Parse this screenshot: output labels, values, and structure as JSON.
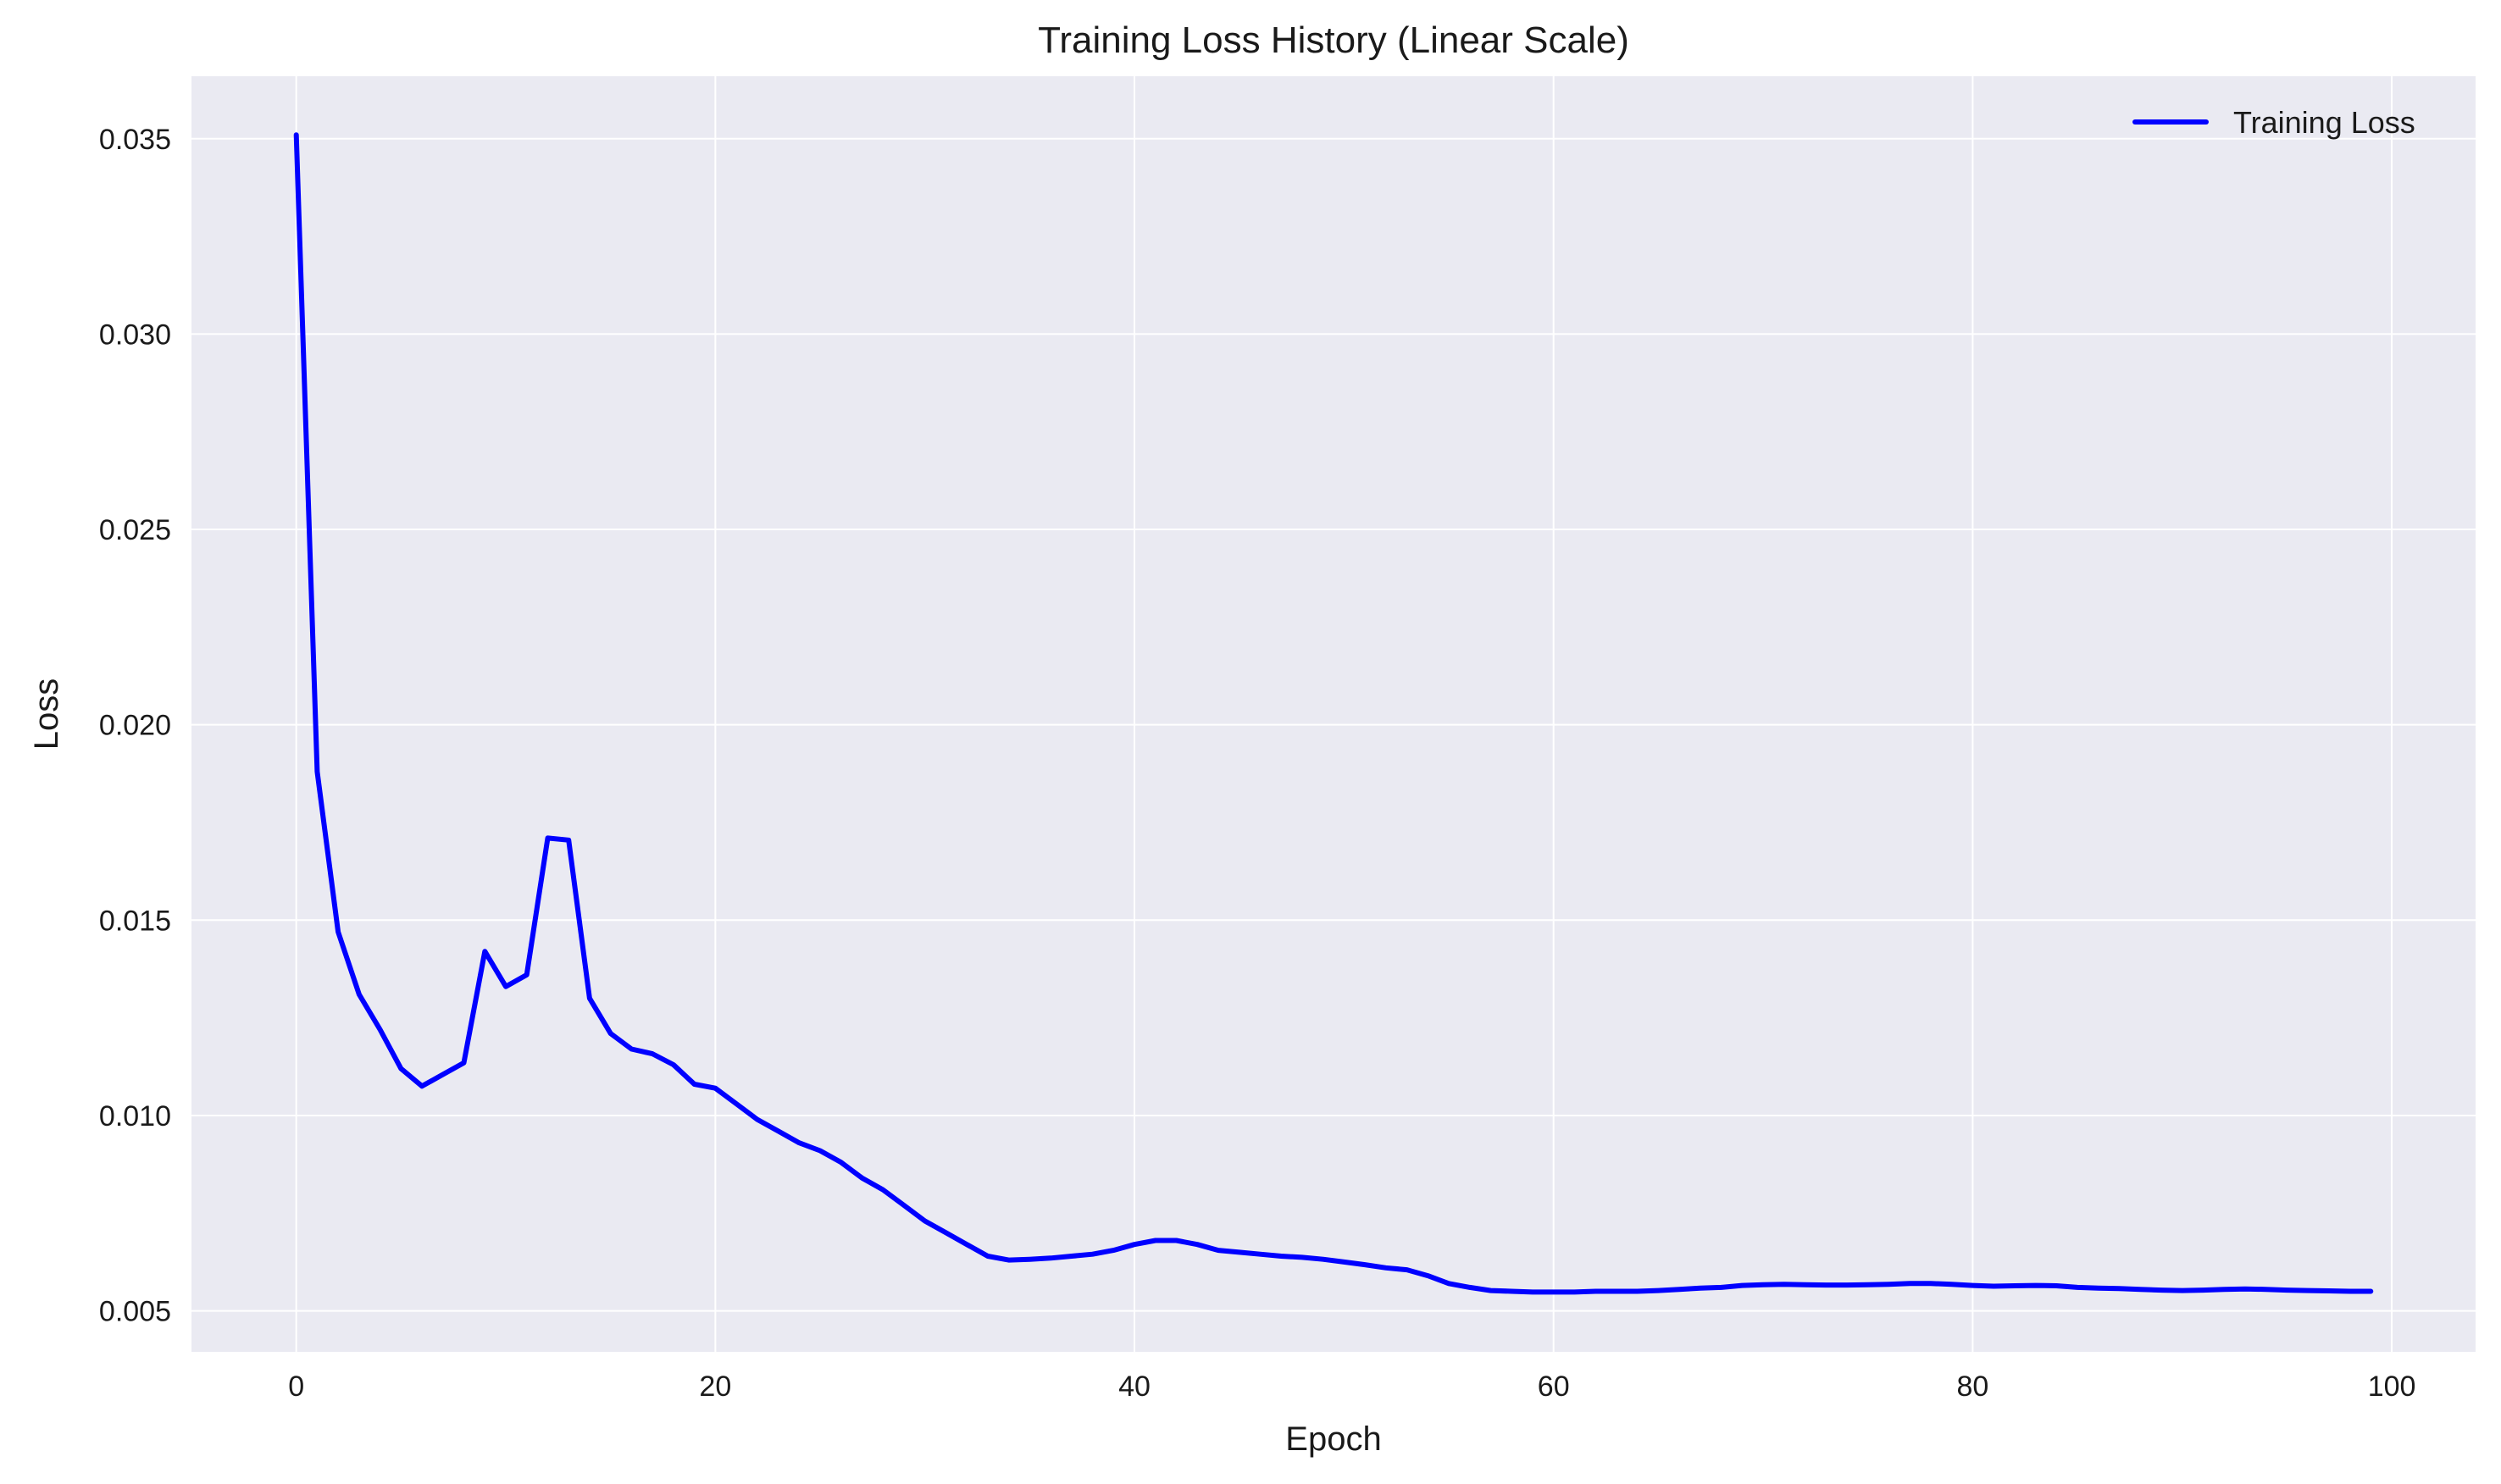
{
  "chart_data": {
    "type": "line",
    "title": "Training Loss History (Linear Scale)",
    "xlabel": "Epoch",
    "ylabel": "Loss",
    "xlim": [
      -5,
      104
    ],
    "ylim": [
      0.00395,
      0.0366
    ],
    "xticks": [
      0,
      20,
      40,
      60,
      80,
      100
    ],
    "yticks": [
      0.005,
      0.01,
      0.015,
      0.02,
      0.025,
      0.03,
      0.035
    ],
    "xtick_labels": [
      "0",
      "20",
      "40",
      "60",
      "80",
      "100"
    ],
    "ytick_labels": [
      "0.005",
      "0.010",
      "0.015",
      "0.020",
      "0.025",
      "0.030",
      "0.035"
    ],
    "grid": true,
    "legend": "top-right",
    "background_color": "#eaeaf2",
    "grid_color": "#ffffff",
    "series": [
      {
        "name": "Training Loss",
        "color": "#0000ff",
        "x": [
          0,
          1,
          2,
          3,
          4,
          5,
          6,
          7,
          8,
          9,
          10,
          11,
          12,
          13,
          14,
          15,
          16,
          17,
          18,
          19,
          20,
          21,
          22,
          23,
          24,
          25,
          26,
          27,
          28,
          29,
          30,
          31,
          32,
          33,
          34,
          35,
          36,
          37,
          38,
          39,
          40,
          41,
          42,
          43,
          44,
          45,
          46,
          47,
          48,
          49,
          50,
          51,
          52,
          53,
          54,
          55,
          56,
          57,
          58,
          59,
          60,
          61,
          62,
          63,
          64,
          65,
          66,
          67,
          68,
          69,
          70,
          71,
          72,
          73,
          74,
          75,
          76,
          77,
          78,
          79,
          80,
          81,
          82,
          83,
          84,
          85,
          86,
          87,
          88,
          89,
          90,
          91,
          92,
          93,
          94,
          95,
          96,
          97,
          98,
          99
        ],
        "values": [
          0.0351,
          0.0188,
          0.0147,
          0.0131,
          0.0122,
          0.0112,
          0.01075,
          0.01105,
          0.01135,
          0.0142,
          0.0133,
          0.0136,
          0.0171,
          0.01705,
          0.013,
          0.0121,
          0.0117,
          0.01158,
          0.0113,
          0.0108,
          0.0107,
          0.0103,
          0.0099,
          0.0096,
          0.0093,
          0.0091,
          0.0088,
          0.0084,
          0.0081,
          0.0077,
          0.0073,
          0.007,
          0.0067,
          0.0064,
          0.0063,
          0.00632,
          0.00635,
          0.0064,
          0.00645,
          0.00655,
          0.0067,
          0.0068,
          0.0068,
          0.0067,
          0.00655,
          0.0065,
          0.00645,
          0.0064,
          0.00637,
          0.00632,
          0.00625,
          0.00618,
          0.0061,
          0.00605,
          0.0059,
          0.0057,
          0.0056,
          0.00552,
          0.0055,
          0.00548,
          0.00548,
          0.00548,
          0.0055,
          0.0055,
          0.0055,
          0.00552,
          0.00555,
          0.00558,
          0.0056,
          0.00565,
          0.00567,
          0.00568,
          0.00567,
          0.00566,
          0.00566,
          0.00567,
          0.00568,
          0.0057,
          0.0057,
          0.00568,
          0.00565,
          0.00563,
          0.00564,
          0.00565,
          0.00564,
          0.0056,
          0.00558,
          0.00557,
          0.00555,
          0.00553,
          0.00552,
          0.00553,
          0.00555,
          0.00556,
          0.00555,
          0.00553,
          0.00552,
          0.00551,
          0.0055,
          0.0055
        ]
      }
    ]
  }
}
